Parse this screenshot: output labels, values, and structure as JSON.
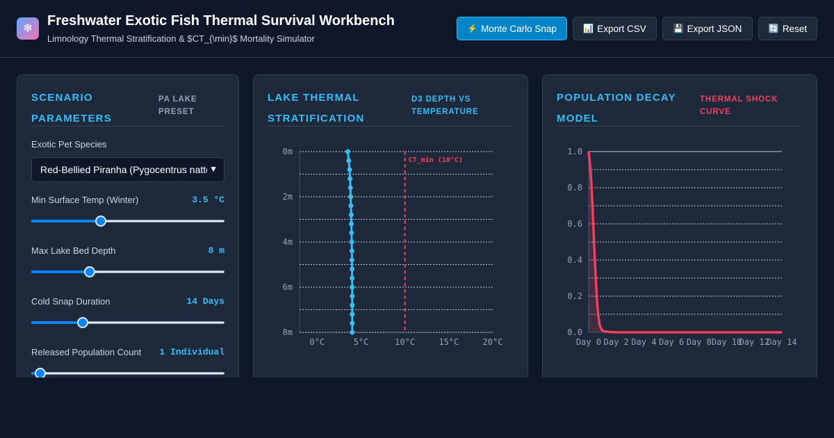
{
  "header": {
    "logo_icon": "snowflake-icon",
    "title": "Freshwater Exotic Fish Thermal Survival Workbench",
    "subtitle": "Limnology Thermal Stratification & $CT_{\\min}$ Mortality Simulator"
  },
  "toolbar": {
    "buttons": [
      {
        "icon": "⚡",
        "label": "Monte Carlo Snap"
      },
      {
        "icon": "📊",
        "label": "Export CSV"
      },
      {
        "icon": "💾",
        "label": "Export JSON"
      },
      {
        "icon": "🔄",
        "label": "Reset"
      }
    ]
  },
  "params": {
    "title": "Scenario Parameters",
    "tag": "PA Lake Preset",
    "species_label": "Exotic Pet Species",
    "species_value": "Red-Bellied Piranha (Pygocentrus nattereri)",
    "temp_label": "Min Surface Temp (Winter)",
    "temp_value": "3.5 °C",
    "temp_level": 0.35,
    "depth_label": "Max Lake Bed Depth",
    "depth_value": "8 m",
    "depth_level": 0.29,
    "duration_label": "Cold Snap Duration",
    "duration_value": "14 Days",
    "duration_level": 0.25,
    "pop_label": "Released Population Count",
    "pop_value": "1 Individual",
    "pop_level": 0.02
  },
  "strat": {
    "title": "Lake Thermal Stratification",
    "tag": "D3 Depth vs Temperature",
    "ct_label": "CT_min (10°C)",
    "colors": {
      "profile": "#38bdf8",
      "threshold": "#f43f5e"
    }
  },
  "decay": {
    "title": "Population Decay Model",
    "tag": "Thermal Shock Curve",
    "colors": {
      "curve": "#f43f5e"
    }
  },
  "chart_data": [
    {
      "type": "line",
      "xlabel": "",
      "ylabel": "",
      "x_ticks": [
        "0°C",
        "5°C",
        "10°C",
        "15°C",
        "20°C"
      ],
      "y_ticks": [
        "0m",
        "2m",
        "4m",
        "6m",
        "8m"
      ],
      "xlim": [
        -2,
        20
      ],
      "ylim": [
        0,
        8
      ],
      "grid": true,
      "threshold_x": 10,
      "series": [
        {
          "depth": [
            0,
            0.4,
            0.8,
            1.2,
            1.6,
            2.0,
            2.4,
            2.8,
            3.2,
            3.6,
            4.0,
            4.4,
            4.8,
            5.2,
            5.6,
            6.0,
            6.4,
            6.8,
            7.2,
            7.6,
            8.0
          ],
          "temp": [
            3.5,
            3.6,
            3.7,
            3.75,
            3.8,
            3.82,
            3.85,
            3.88,
            3.9,
            3.92,
            3.94,
            3.96,
            3.97,
            3.98,
            3.99,
            4.0,
            4.0,
            4.0,
            4.0,
            4.0,
            4.0
          ]
        }
      ]
    },
    {
      "type": "area",
      "xlabel": "",
      "ylabel": "",
      "x_ticks": [
        "Day 0",
        "Day 2",
        "Day 4",
        "Day 6",
        "Day 8",
        "Day 10",
        "Day 12",
        "Day 14"
      ],
      "y_ticks": [
        "0.0",
        "0.2",
        "0.4",
        "0.6",
        "0.8",
        "1.0"
      ],
      "xlim": [
        0,
        14
      ],
      "ylim": [
        0,
        1
      ],
      "grid": true,
      "series": [
        {
          "x": [
            0,
            0.1,
            0.2,
            0.3,
            0.4,
            0.5,
            0.6,
            0.7,
            0.8,
            0.9,
            1.0,
            1.2,
            1.5,
            2,
            3,
            4,
            5,
            6,
            7,
            8,
            9,
            10,
            11,
            12,
            13,
            14
          ],
          "y": [
            1.0,
            0.93,
            0.82,
            0.66,
            0.48,
            0.32,
            0.18,
            0.09,
            0.04,
            0.02,
            0.01,
            0.005,
            0.002,
            0,
            0,
            0,
            0,
            0,
            0,
            0,
            0,
            0,
            0,
            0,
            0,
            0
          ]
        }
      ]
    }
  ]
}
